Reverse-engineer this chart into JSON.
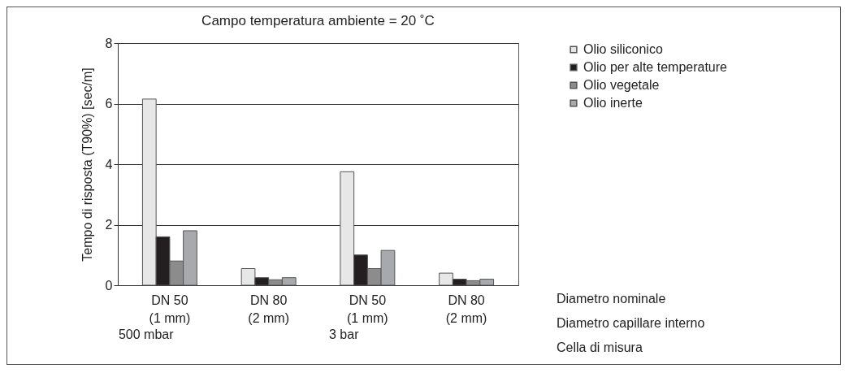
{
  "chart_data": {
    "type": "bar",
    "title": "Campo temperatura ambiente = 20 ˚C",
    "ylabel": "Tempo di risposta (T90%) [sec/m]",
    "categories": [
      "DN 50\n(1 mm)",
      "DN 80\n(2 mm)",
      "DN 50\n(1 mm)",
      "DN 80\n(2 mm)"
    ],
    "series": [
      {
        "name": "Olio siliconico",
        "color": "#e6e7e6",
        "values": [
          6.15,
          0.55,
          3.75,
          0.4
        ]
      },
      {
        "name": "Olio per alte temperature",
        "color": "#231f20",
        "values": [
          1.6,
          0.25,
          1.0,
          0.2
        ]
      },
      {
        "name": "Olio vegetale",
        "color": "#8c8c8c",
        "values": [
          0.8,
          0.18,
          0.55,
          0.15
        ]
      },
      {
        "name": "Olio inerte",
        "color": "#a7a9ac",
        "values": [
          1.8,
          0.25,
          1.15,
          0.2
        ]
      }
    ],
    "ylim": [
      0,
      8
    ],
    "yticks": [
      0,
      2,
      4,
      6,
      8
    ],
    "grid": "y",
    "legend": "right",
    "annotations": [
      "500 mbar",
      "3 bar",
      "Diametro nominale",
      "Diametro capillare interno",
      "Cella di misura"
    ]
  }
}
